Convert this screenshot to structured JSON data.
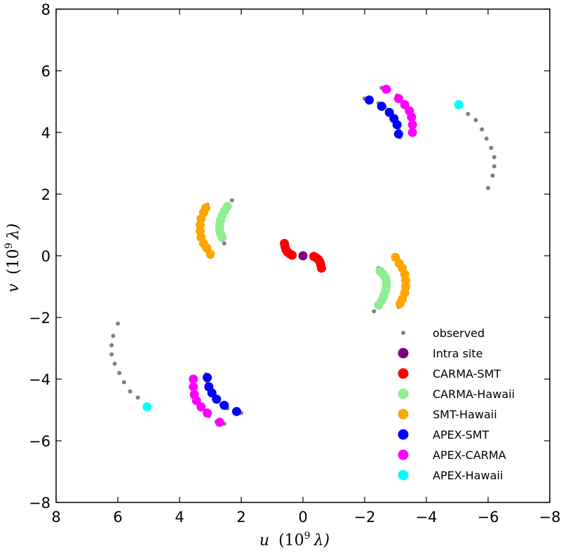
{
  "chart_data": {
    "type": "scatter",
    "title": "",
    "xlabel_var": "u",
    "xlabel_unit": "(10",
    "ylabel_var": "v",
    "ylabel_unit": "(10",
    "label_exponent": "9",
    "label_lambda": "λ)",
    "xlim": [
      8,
      -8
    ],
    "ylim": [
      -8,
      8
    ],
    "xticks": [
      8,
      6,
      4,
      2,
      0,
      -2,
      -4,
      -6,
      -8
    ],
    "yticks": [
      8,
      6,
      4,
      2,
      0,
      -2,
      -4,
      -6,
      -8
    ],
    "xtick_labels": [
      "8",
      "6",
      "4",
      "2",
      "0",
      "−2",
      "−4",
      "−6",
      "−8"
    ],
    "ytick_labels": [
      "8",
      "6",
      "4",
      "2",
      "0",
      "−2",
      "−4",
      "−6",
      "−8"
    ],
    "legend_position": "lower-right",
    "series": [
      {
        "name": "observed",
        "color": "#808080",
        "marker": "small",
        "points": [
          [
            -2.0,
            5.1
          ],
          [
            -2.2,
            5.05
          ],
          [
            -2.45,
            4.95
          ],
          [
            -2.65,
            4.82
          ],
          [
            -2.85,
            4.6
          ],
          [
            -3.0,
            4.35
          ],
          [
            -3.1,
            4.1
          ],
          [
            -3.15,
            3.85
          ],
          [
            -2.55,
            5.45
          ],
          [
            -2.8,
            5.38
          ],
          [
            -3.05,
            5.2
          ],
          [
            -3.3,
            4.95
          ],
          [
            -3.45,
            4.65
          ],
          [
            -3.55,
            4.3
          ],
          [
            -3.55,
            3.95
          ],
          [
            -5.1,
            4.85
          ],
          [
            -5.35,
            4.6
          ],
          [
            -5.6,
            4.4
          ],
          [
            -5.8,
            4.1
          ],
          [
            -5.95,
            3.8
          ],
          [
            -6.1,
            3.5
          ],
          [
            -6.2,
            3.2
          ],
          [
            -6.2,
            2.9
          ],
          [
            -6.15,
            2.6
          ],
          [
            -6.0,
            2.2
          ],
          [
            2.0,
            -5.1
          ],
          [
            2.2,
            -5.05
          ],
          [
            2.45,
            -4.95
          ],
          [
            2.65,
            -4.82
          ],
          [
            2.85,
            -4.6
          ],
          [
            3.0,
            -4.35
          ],
          [
            3.1,
            -4.1
          ],
          [
            3.15,
            -3.85
          ],
          [
            2.55,
            -5.45
          ],
          [
            2.8,
            -5.38
          ],
          [
            3.05,
            -5.2
          ],
          [
            3.3,
            -4.95
          ],
          [
            3.45,
            -4.65
          ],
          [
            3.55,
            -4.3
          ],
          [
            3.55,
            -3.95
          ],
          [
            5.1,
            -4.85
          ],
          [
            5.35,
            -4.6
          ],
          [
            5.6,
            -4.4
          ],
          [
            5.8,
            -4.1
          ],
          [
            5.95,
            -3.8
          ],
          [
            6.1,
            -3.5
          ],
          [
            6.2,
            -3.2
          ],
          [
            6.2,
            -2.9
          ],
          [
            6.15,
            -2.6
          ],
          [
            6.0,
            -2.2
          ],
          [
            2.3,
            1.8
          ],
          [
            2.45,
            1.6
          ],
          [
            2.58,
            1.35
          ],
          [
            2.65,
            1.1
          ],
          [
            2.67,
            0.85
          ],
          [
            2.63,
            0.6
          ],
          [
            2.55,
            0.4
          ],
          [
            -2.3,
            -1.8
          ],
          [
            -2.45,
            -1.6
          ],
          [
            -2.58,
            -1.35
          ],
          [
            -2.65,
            -1.1
          ],
          [
            -2.67,
            -0.85
          ],
          [
            -2.63,
            -0.6
          ],
          [
            -2.45,
            -0.4
          ],
          [
            3.1,
            1.65
          ],
          [
            3.2,
            1.45
          ],
          [
            3.28,
            1.2
          ],
          [
            3.3,
            0.95
          ],
          [
            3.28,
            0.7
          ],
          [
            3.22,
            0.45
          ],
          [
            3.1,
            0.2
          ],
          [
            2.95,
            0.0
          ],
          [
            -3.1,
            -1.65
          ],
          [
            -3.2,
            -1.45
          ],
          [
            -3.28,
            -1.2
          ],
          [
            -3.3,
            -0.95
          ],
          [
            -3.28,
            -0.7
          ],
          [
            -3.22,
            -0.45
          ],
          [
            -3.1,
            -0.2
          ],
          [
            -2.95,
            0.0
          ],
          [
            0.6,
            0.4
          ],
          [
            0.5,
            0.2
          ],
          [
            0.4,
            0.05
          ],
          [
            -0.6,
            -0.4
          ],
          [
            -0.5,
            -0.2
          ],
          [
            -0.4,
            -0.05
          ]
        ]
      },
      {
        "name": "Intra site",
        "color": "#800080",
        "marker": "large",
        "points": [
          [
            0.0,
            0.0
          ]
        ]
      },
      {
        "name": "CARMA-SMT",
        "color": "#ff0000",
        "marker": "large",
        "points": [
          [
            0.6,
            0.4
          ],
          [
            0.58,
            0.3
          ],
          [
            0.55,
            0.2
          ],
          [
            0.5,
            0.12
          ],
          [
            0.42,
            0.06
          ],
          [
            0.35,
            0.02
          ],
          [
            -0.6,
            -0.4
          ],
          [
            -0.58,
            -0.3
          ],
          [
            -0.55,
            -0.2
          ],
          [
            -0.5,
            -0.12
          ],
          [
            -0.42,
            -0.06
          ],
          [
            -0.35,
            -0.02
          ]
        ]
      },
      {
        "name": "CARMA-Hawaii",
        "color": "#90ee90",
        "marker": "large",
        "points": [
          [
            2.45,
            1.6
          ],
          [
            2.55,
            1.45
          ],
          [
            2.62,
            1.3
          ],
          [
            2.67,
            1.15
          ],
          [
            2.7,
            1.0
          ],
          [
            2.7,
            0.85
          ],
          [
            2.67,
            0.72
          ],
          [
            2.62,
            0.6
          ],
          [
            -2.45,
            -1.6
          ],
          [
            -2.55,
            -1.45
          ],
          [
            -2.62,
            -1.3
          ],
          [
            -2.67,
            -1.15
          ],
          [
            -2.7,
            -1.0
          ],
          [
            -2.7,
            -0.85
          ],
          [
            -2.67,
            -0.72
          ],
          [
            -2.6,
            -0.6
          ],
          [
            -2.5,
            -0.5
          ]
        ]
      },
      {
        "name": "SMT-Hawaii",
        "color": "#ffa500",
        "marker": "large",
        "points": [
          [
            3.15,
            1.55
          ],
          [
            3.22,
            1.4
          ],
          [
            3.3,
            1.2
          ],
          [
            3.33,
            1.0
          ],
          [
            3.33,
            0.8
          ],
          [
            3.3,
            0.6
          ],
          [
            3.22,
            0.4
          ],
          [
            3.12,
            0.25
          ],
          [
            3.0,
            0.05
          ],
          [
            -3.15,
            -1.55
          ],
          [
            -3.22,
            -1.4
          ],
          [
            -3.3,
            -1.2
          ],
          [
            -3.33,
            -1.0
          ],
          [
            -3.33,
            -0.8
          ],
          [
            -3.3,
            -0.6
          ],
          [
            -3.22,
            -0.4
          ],
          [
            -3.12,
            -0.25
          ],
          [
            -3.0,
            -0.05
          ]
        ]
      },
      {
        "name": "APEX-SMT",
        "color": "#0000ff",
        "marker": "large",
        "points": [
          [
            -2.15,
            5.05
          ],
          [
            -2.55,
            4.85
          ],
          [
            -2.8,
            4.65
          ],
          [
            -2.95,
            4.45
          ],
          [
            -3.05,
            4.25
          ],
          [
            -3.1,
            3.95
          ],
          [
            2.15,
            -5.05
          ],
          [
            2.55,
            -4.85
          ],
          [
            2.8,
            -4.65
          ],
          [
            2.95,
            -4.45
          ],
          [
            3.05,
            -4.25
          ],
          [
            3.1,
            -3.95
          ]
        ]
      },
      {
        "name": "APEX-CARMA",
        "color": "#ff00ff",
        "marker": "large",
        "points": [
          [
            -2.7,
            5.4
          ],
          [
            -3.1,
            5.1
          ],
          [
            -3.3,
            4.9
          ],
          [
            -3.45,
            4.7
          ],
          [
            -3.52,
            4.5
          ],
          [
            -3.55,
            4.25
          ],
          [
            -3.55,
            4.0
          ],
          [
            2.7,
            -5.4
          ],
          [
            3.1,
            -5.1
          ],
          [
            3.3,
            -4.9
          ],
          [
            3.45,
            -4.7
          ],
          [
            3.52,
            -4.5
          ],
          [
            3.55,
            -4.25
          ],
          [
            3.55,
            -4.0
          ]
        ]
      },
      {
        "name": "APEX-Hawaii",
        "color": "#00ffff",
        "marker": "large",
        "points": [
          [
            -5.05,
            4.9
          ],
          [
            5.05,
            -4.9
          ]
        ]
      }
    ]
  }
}
